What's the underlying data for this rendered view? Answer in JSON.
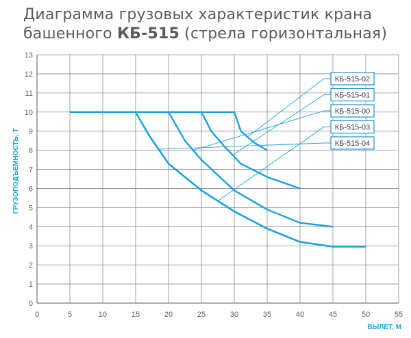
{
  "chart_data": {
    "type": "line",
    "title_line1": "Диаграмма грузовых характеристик крана",
    "title_line2_prefix": "башенного ",
    "title_line2_bold": "КБ-515",
    "title_line2_suffix": " (стрела горизонтальная)",
    "xlabel": "ВЫЛЕТ, М",
    "ylabel": "ГРУЗОПОДЪЕМНОСТЬ, Т",
    "xlim": [
      0,
      55
    ],
    "ylim": [
      0,
      13
    ],
    "xticks": [
      "0",
      "5",
      "10",
      "15",
      "20",
      "25",
      "30",
      "35",
      "40",
      "45",
      "50",
      "55"
    ],
    "yticks": [
      "0",
      "1",
      "2",
      "3",
      "4",
      "5",
      "6",
      "7",
      "8",
      "9",
      "10",
      "11",
      "12",
      "13"
    ],
    "grid": true,
    "line_color": "#1aa0e0",
    "legend_position": "right",
    "series": [
      {
        "name": "КБ-515-02",
        "x": [
          5,
          30,
          31,
          33,
          35
        ],
        "y": [
          10,
          10,
          9.0,
          8.4,
          8.0
        ]
      },
      {
        "name": "КБ-515-01",
        "x": [
          5,
          25,
          26.5,
          28.5,
          31,
          35,
          40
        ],
        "y": [
          10,
          10,
          9.0,
          8.2,
          7.3,
          6.6,
          6.0
        ]
      },
      {
        "name": "КБ-515-00",
        "x": [
          5,
          20,
          22.5,
          25,
          30,
          35,
          40,
          45
        ],
        "y": [
          10,
          10,
          8.5,
          7.5,
          5.9,
          4.9,
          4.2,
          4.0
        ]
      },
      {
        "name": "КБ-515-03",
        "x": [
          5,
          15,
          17,
          20,
          25,
          30,
          35,
          40,
          45,
          50
        ],
        "y": [
          10,
          10,
          8.8,
          7.3,
          5.9,
          4.8,
          3.9,
          3.2,
          2.95,
          2.95
        ]
      },
      {
        "name": "КБ-515-04",
        "x": [
          5,
          15,
          17,
          20,
          25,
          30,
          35,
          40,
          45
        ],
        "y": [
          10,
          10,
          8.8,
          7.3,
          5.9,
          4.8,
          3.9,
          3.2,
          2.95
        ]
      }
    ]
  }
}
